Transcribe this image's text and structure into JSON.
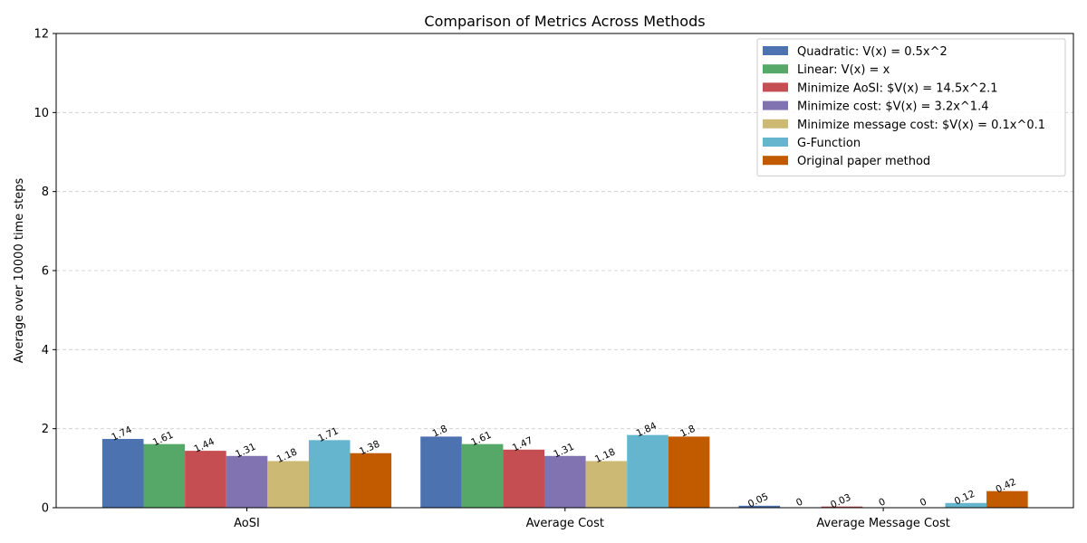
{
  "chart_data": {
    "type": "bar",
    "title": "Comparison of Metrics Across Methods",
    "xlabel": "",
    "ylabel": "Average over 10000 time steps",
    "categories": [
      "AoSI",
      "Average Cost",
      "Average Message Cost"
    ],
    "ylim": [
      0,
      12
    ],
    "yticks": [
      0,
      2,
      4,
      6,
      8,
      10,
      12
    ],
    "grid": "y-dashed",
    "legend_position": "top-right",
    "series": [
      {
        "name": "Quadratic: V(x) = 0.5x^2",
        "color": "#4c72b0",
        "values": [
          1.74,
          1.8,
          0.05
        ],
        "labels": [
          "1.74",
          "1.8",
          "0.05"
        ]
      },
      {
        "name": "Linear: V(x) = x",
        "color": "#55a868",
        "values": [
          1.61,
          1.61,
          0
        ],
        "labels": [
          "1.61",
          "1.61",
          "0"
        ]
      },
      {
        "name": "Minimize AoSI: $V(x) = 14.5x^2.1",
        "color": "#c44e52",
        "values": [
          1.44,
          1.47,
          0.03
        ],
        "labels": [
          "1.44",
          "1.47",
          "0.03"
        ]
      },
      {
        "name": "Minimize cost: $V(x) = 3.2x^1.4",
        "color": "#8172b2",
        "values": [
          1.31,
          1.31,
          0
        ],
        "labels": [
          "1.31",
          "1.31",
          "0"
        ]
      },
      {
        "name": "Minimize message cost: $V(x) = 0.1x^0.1",
        "color": "#ccb974",
        "values": [
          1.18,
          1.18,
          0
        ],
        "labels": [
          "1.18",
          "1.18",
          "0"
        ]
      },
      {
        "name": "G-Function",
        "color": "#64b5cd",
        "values": [
          1.71,
          1.84,
          0.12
        ],
        "labels": [
          "1.71",
          "1.84",
          "0.12"
        ]
      },
      {
        "name": "Original paper method",
        "color": "#c25a00",
        "values": [
          1.38,
          1.8,
          0.42
        ],
        "labels": [
          "1.38",
          "1.8",
          "0.42"
        ]
      }
    ]
  }
}
